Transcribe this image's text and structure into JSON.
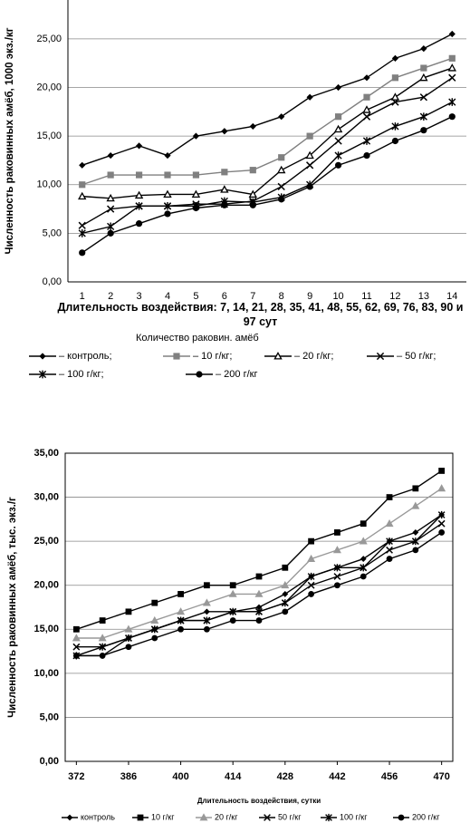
{
  "chart_data": [
    {
      "type": "line",
      "y_label": "Численность раковинных амёб, 1000 экз./кг",
      "x_label": "Длительность воздействия: 7, 14, 21, 28, 35, 41, 48, 55, 62, 69, 76, 83, 90 и 97 сут",
      "legend_title": "Количество раковин. амёб",
      "categories": [
        "1",
        "2",
        "3",
        "4",
        "5",
        "6",
        "7",
        "8",
        "9",
        "10",
        "11",
        "12",
        "13",
        "14"
      ],
      "ylim": [
        0,
        29
      ],
      "yticks": [
        {
          "value": 0,
          "label": "0,00"
        },
        {
          "value": 5,
          "label": "5,00"
        },
        {
          "value": 10,
          "label": "10,00"
        },
        {
          "value": 15,
          "label": "15,00"
        },
        {
          "value": 20,
          "label": "20,00"
        },
        {
          "value": 25,
          "label": "25,00"
        }
      ],
      "grid": true,
      "series": [
        {
          "name": "– контроль;",
          "color": "#000000",
          "marker": "diamond",
          "values": [
            12,
            13,
            14,
            13,
            15,
            15.5,
            16,
            17,
            19,
            20,
            21,
            23,
            24,
            25.5
          ]
        },
        {
          "name": "– 10 г/кг;",
          "color": "#808080",
          "marker": "square",
          "values": [
            10,
            11,
            11,
            11,
            11,
            11.3,
            11.5,
            12.8,
            15,
            17,
            19,
            21,
            22,
            23
          ]
        },
        {
          "name": "– 20 г/кг;",
          "color": "#000000",
          "marker": "triangle-open",
          "values": [
            8.8,
            8.6,
            8.9,
            9,
            9,
            9.5,
            9,
            11.5,
            13,
            15.7,
            17.7,
            19,
            21,
            22
          ]
        },
        {
          "name": "– 50 г/кг;",
          "color": "#000000",
          "marker": "x",
          "values": [
            5.8,
            7.5,
            7.8,
            7.8,
            8,
            8,
            8.3,
            9.8,
            12,
            14.5,
            17,
            18.5,
            19,
            21
          ]
        },
        {
          "name": "– 100 г/кг;",
          "color": "#000000",
          "marker": "star",
          "values": [
            5,
            5.7,
            7.8,
            7.8,
            7.8,
            8.3,
            8.2,
            8.7,
            10,
            13,
            14.5,
            16,
            17,
            18.5
          ]
        },
        {
          "name": "– 200 г/кг",
          "color": "#000000",
          "marker": "circle",
          "values": [
            3,
            5,
            6,
            7,
            7.6,
            7.9,
            7.9,
            8.5,
            9.8,
            12,
            13,
            14.5,
            15.6,
            17
          ]
        }
      ]
    },
    {
      "type": "line",
      "y_label": "Численность раковинных амёб, тыс. экз./г",
      "x_label": "Длительность воздействия, сутки",
      "x": [
        372,
        379,
        386,
        393,
        400,
        407,
        414,
        421,
        428,
        435,
        442,
        449,
        456,
        463,
        470
      ],
      "xlim": [
        369,
        473
      ],
      "xticks": [
        372,
        386,
        400,
        414,
        428,
        442,
        456,
        470
      ],
      "ylim": [
        0,
        35
      ],
      "yticks": [
        {
          "value": 0,
          "label": "0,00"
        },
        {
          "value": 5,
          "label": "5,00"
        },
        {
          "value": 10,
          "label": "10,00"
        },
        {
          "value": 15,
          "label": "15,00"
        },
        {
          "value": 20,
          "label": "20,00"
        },
        {
          "value": 25,
          "label": "25,00"
        },
        {
          "value": 30,
          "label": "30,00"
        },
        {
          "value": 35,
          "label": "35,00"
        }
      ],
      "grid": true,
      "series": [
        {
          "name": "контроль",
          "color": "#000000",
          "marker": "diamond",
          "values": [
            12,
            12,
            14,
            15,
            16,
            17,
            17,
            17.5,
            19,
            21,
            22,
            23,
            25,
            26,
            28
          ]
        },
        {
          "name": "10 г/кг",
          "color": "#000000",
          "marker": "square",
          "values": [
            15,
            16,
            17,
            18,
            19,
            20,
            20,
            21,
            22,
            25,
            26,
            27,
            30,
            31,
            33
          ]
        },
        {
          "name": "20 г/кг",
          "color": "#999999",
          "marker": "triangle",
          "values": [
            14,
            14,
            15,
            16,
            17,
            18,
            19,
            19,
            20,
            23,
            24,
            25,
            27,
            29,
            31
          ]
        },
        {
          "name": "50 г/кг",
          "color": "#000000",
          "marker": "x",
          "values": [
            13,
            13,
            14,
            15,
            16,
            16,
            17,
            17,
            18,
            20,
            21,
            22,
            24,
            25,
            27
          ]
        },
        {
          "name": "100 г/кг",
          "color": "#000000",
          "marker": "star",
          "values": [
            12,
            13,
            14,
            15,
            16,
            16,
            17,
            17,
            18,
            21,
            22,
            22,
            25,
            25,
            28
          ]
        },
        {
          "name": "200 г/кг",
          "color": "#000000",
          "marker": "circle",
          "values": [
            12,
            12,
            13,
            14,
            15,
            15,
            16,
            16,
            17,
            19,
            20,
            21,
            23,
            24,
            26
          ]
        }
      ]
    }
  ]
}
